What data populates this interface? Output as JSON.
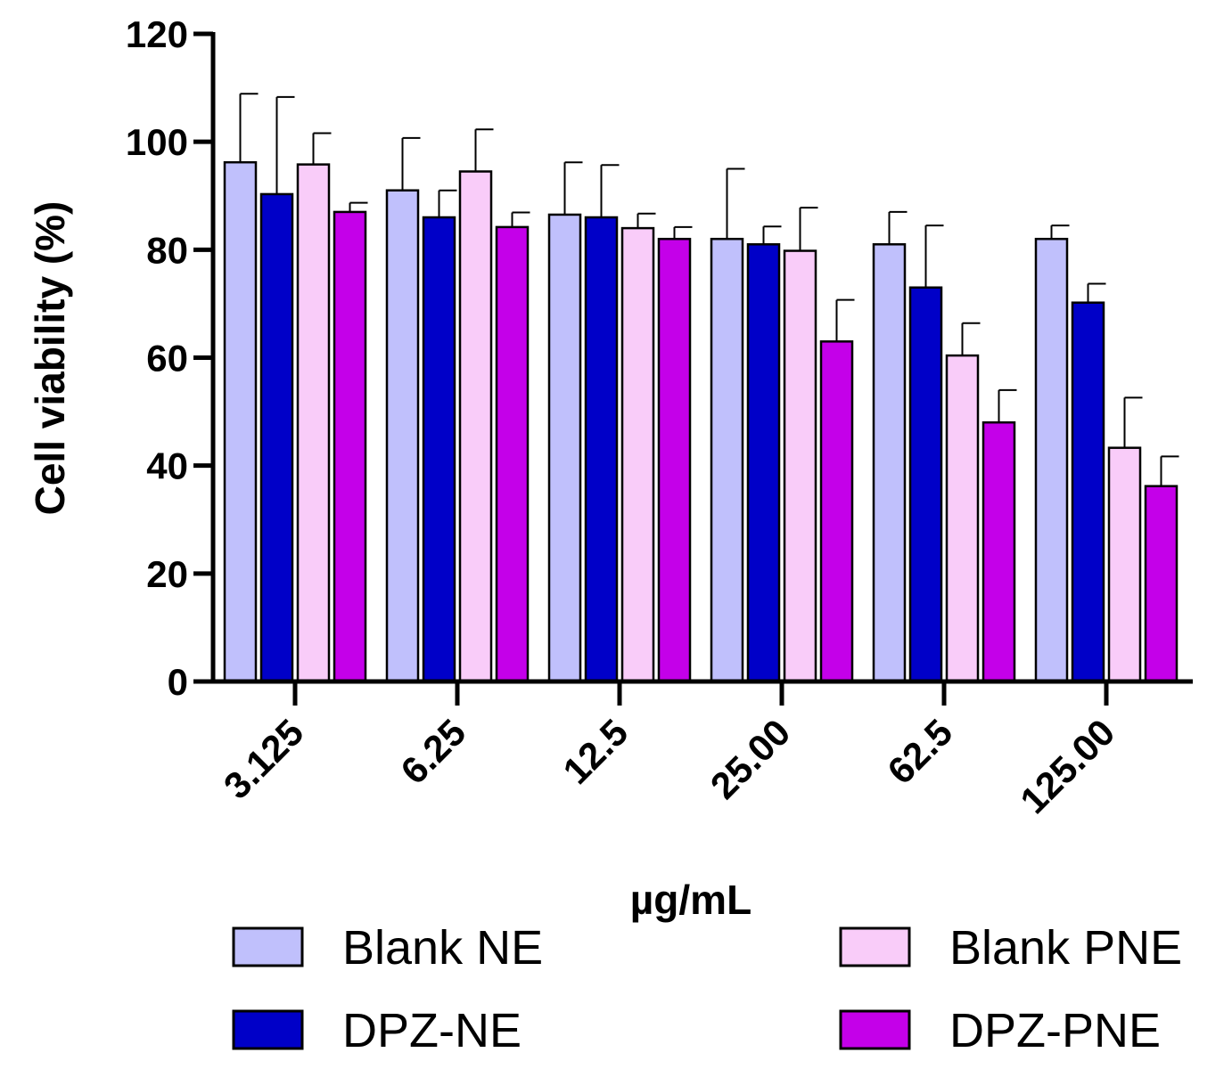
{
  "chart_data": {
    "type": "bar",
    "title": "",
    "xlabel": "µg/mL",
    "ylabel": "Cell viability (%)",
    "ylim": [
      0,
      120
    ],
    "yticks": [
      0,
      20,
      40,
      60,
      80,
      100,
      120
    ],
    "categories": [
      "3.125",
      "6.25",
      "12.5",
      "25.00",
      "62.5",
      "125.00"
    ],
    "series": [
      {
        "name": "Blank NE",
        "color": "#c0c0fc",
        "values": [
          96.2,
          91.0,
          86.5,
          82.0,
          81.0,
          82.0
        ],
        "errors": [
          12.7,
          9.7,
          9.7,
          13.0,
          6.0,
          2.5
        ]
      },
      {
        "name": "DPZ-NE",
        "color": "#0000c8",
        "values": [
          90.3,
          86.0,
          86.0,
          81.0,
          73.0,
          70.2
        ],
        "errors": [
          18.0,
          5.0,
          9.7,
          3.3,
          11.5,
          3.5
        ]
      },
      {
        "name": "Blank PNE",
        "color": "#f9ccf9",
        "values": [
          95.8,
          94.5,
          84.0,
          79.8,
          60.4,
          43.3
        ],
        "errors": [
          5.8,
          7.8,
          2.7,
          8.0,
          6.0,
          9.3
        ]
      },
      {
        "name": "DPZ-PNE",
        "color": "#c400e9",
        "values": [
          87.0,
          84.2,
          82.0,
          63.0,
          48.0,
          36.2
        ],
        "errors": [
          1.7,
          2.7,
          2.2,
          7.7,
          6.0,
          5.5
        ]
      }
    ],
    "legend_position": "bottom"
  }
}
